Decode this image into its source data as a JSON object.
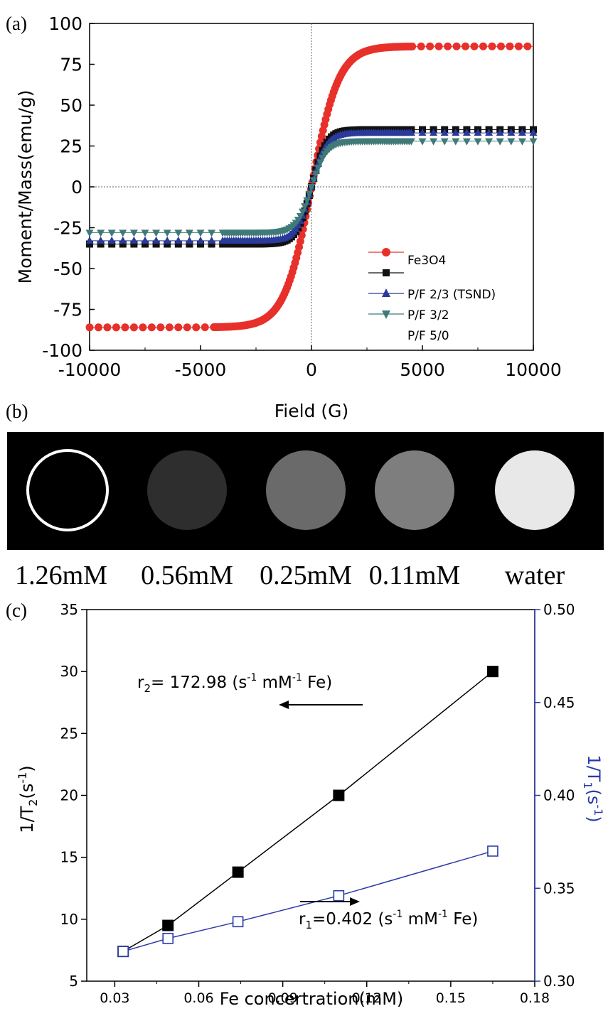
{
  "panel_labels": {
    "a": "(a)",
    "b": "(b)",
    "c": "(c)"
  },
  "chart_data": [
    {
      "type": "scatter",
      "panel": "a",
      "xlabel": "Field (G)",
      "ylabel": "Moment/Mass(emu/g)",
      "xlim": [
        -10000,
        10000
      ],
      "ylim": [
        -100,
        100
      ],
      "xticks": [
        "-10000",
        "-5000",
        "0",
        "5000",
        "10000"
      ],
      "yticks": [
        "100",
        "75",
        "50",
        "25",
        "0",
        "-25",
        "-50",
        "-75",
        "-100"
      ],
      "zero_lines": "dotted",
      "legend_position": "bottom-right",
      "legend_labels": [
        "Fe3O4",
        "P/F 2/3 (TSND)",
        "P/F 3/2",
        "P/F 5/0"
      ],
      "series": [
        {
          "marker": "circle",
          "color": "#e8302a",
          "ms": 86,
          "k": 1100
        },
        {
          "marker": "square",
          "color": "#111111",
          "ms": 35,
          "k": 600
        },
        {
          "marker": "triangle-up",
          "color": "#2b3a9a",
          "ms": 33,
          "k": 600
        },
        {
          "marker": "triangle-down",
          "color": "#3f7a78",
          "ms": 28,
          "k": 600
        }
      ]
    },
    {
      "type": "line",
      "panel": "c",
      "xlabel": "Fe concertration(mM)",
      "ylabel_left": "1/T2(s-1)",
      "ylabel_right": "1/T1(s-1)",
      "xlim": [
        0.02,
        0.18
      ],
      "ylim_left": [
        5,
        35
      ],
      "ylim_right": [
        0.3,
        0.5
      ],
      "xticks": [
        "0.03",
        "0.06",
        "0.09",
        "0.12",
        "0.15",
        "0.18"
      ],
      "yticks_left": [
        "5",
        "10",
        "15",
        "20",
        "25",
        "30",
        "35"
      ],
      "yticks_right": [
        "0.30",
        "0.35",
        "0.40",
        "0.45",
        "0.50"
      ],
      "series": [
        {
          "axis": "left",
          "marker": "filled-square",
          "color": "#000000",
          "x": [
            0.033,
            0.049,
            0.074,
            0.11,
            0.165
          ],
          "y": [
            7.4,
            9.5,
            13.8,
            20.0,
            30.0
          ]
        },
        {
          "axis": "right",
          "marker": "open-square",
          "color": "#2b3aa8",
          "x": [
            0.033,
            0.049,
            0.074,
            0.11,
            0.165
          ],
          "y": [
            0.316,
            0.323,
            0.332,
            0.346,
            0.37
          ]
        }
      ],
      "annotations": {
        "r2": "172.98 (s",
        "r2_unit": " mM",
        "r2_tail": " Fe)",
        "r1": "=0.402 (s",
        "r1_unit": " mM",
        "r1_tail": " Fe)"
      }
    }
  ],
  "mri_panel": {
    "labels": [
      "1.26mM",
      "0.56mM",
      "0.25mM",
      "0.11mM",
      "water"
    ],
    "brightness": [
      "#000000",
      "#2e2e2e",
      "#6a6a6a",
      "#7e7e7e",
      "#e8e8e8"
    ]
  }
}
